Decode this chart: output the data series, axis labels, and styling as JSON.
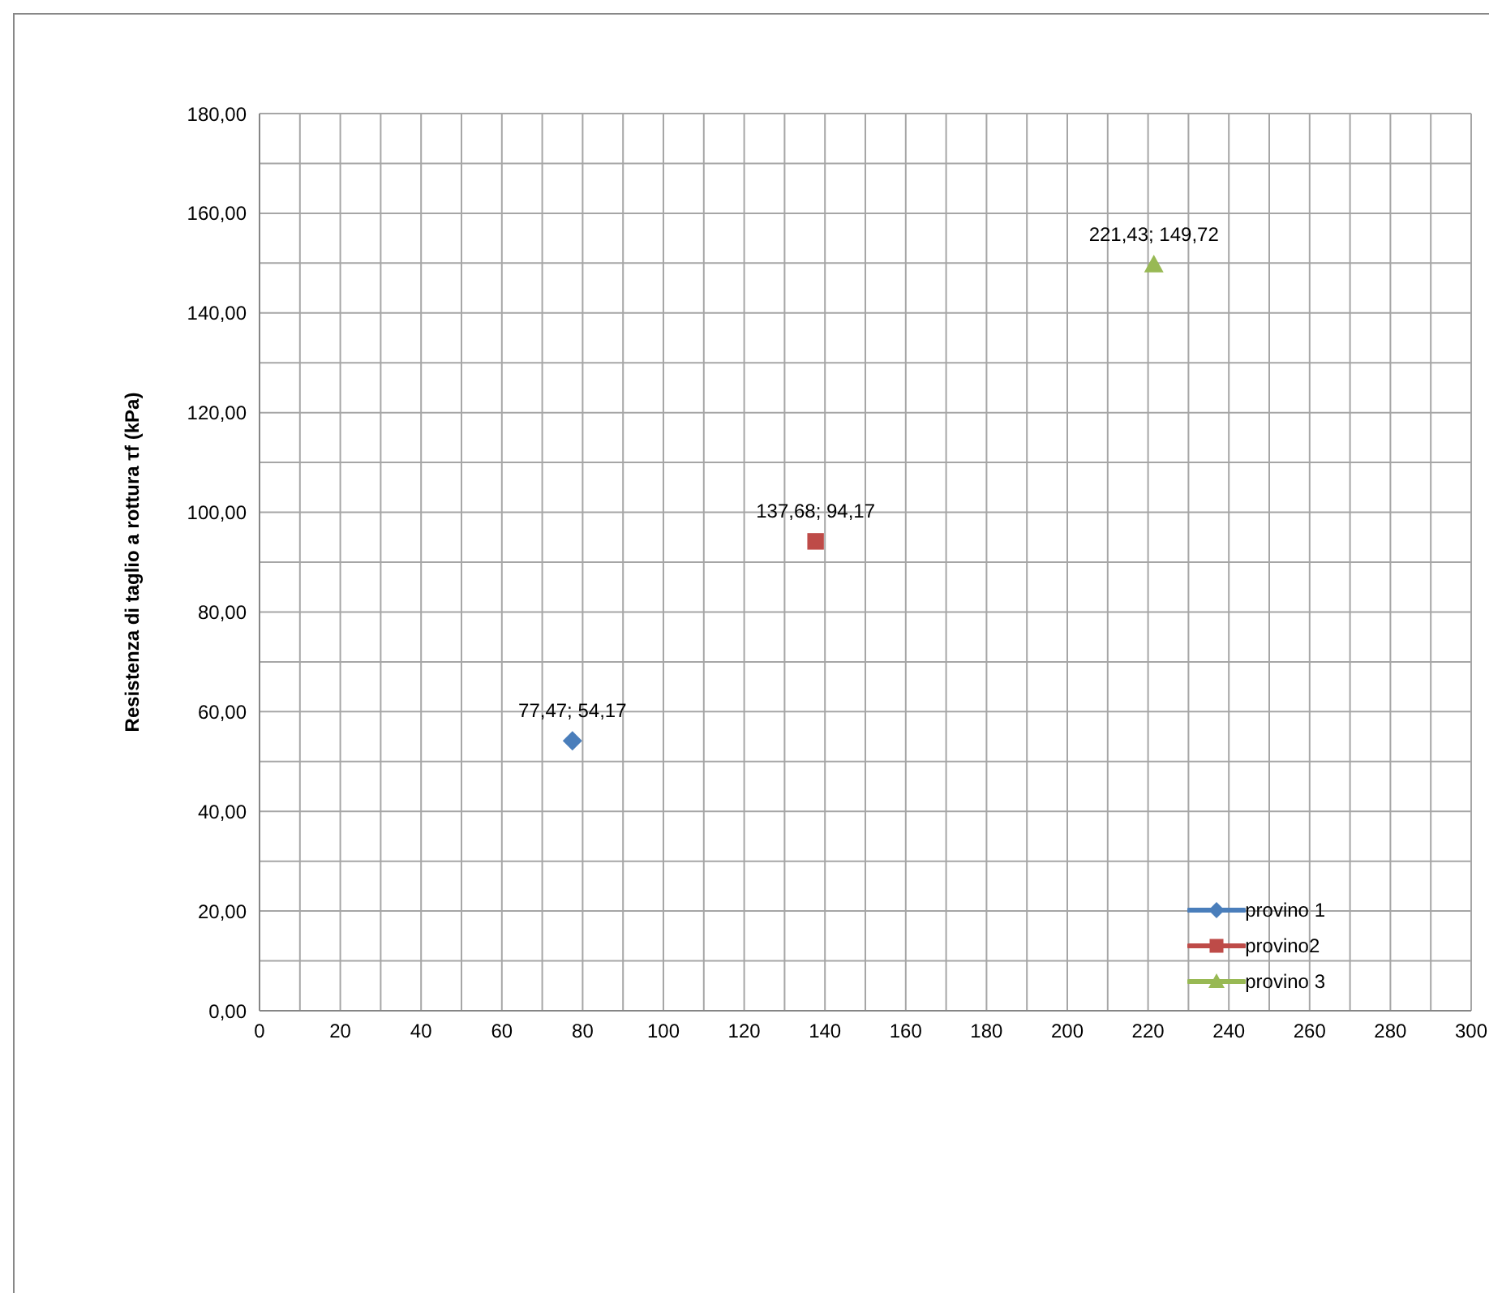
{
  "chart_data": {
    "type": "scatter",
    "ylabel": "Resistenza di taglio a rottura τf (kPa)",
    "xlim": [
      0,
      300
    ],
    "xticks": [
      0,
      {
        "value": 10,
        "label": null
      },
      20,
      {
        "value": 30,
        "label": null
      },
      40,
      {
        "value": 50,
        "label": null
      },
      60,
      {
        "value": 70,
        "label": null
      },
      80,
      {
        "value": 90,
        "label": null
      },
      100,
      {
        "value": 110,
        "label": null
      },
      120,
      {
        "value": 130,
        "label": null
      },
      140,
      {
        "value": 150,
        "label": null
      },
      160,
      {
        "value": 170,
        "label": null
      },
      180,
      {
        "value": 190,
        "label": null
      },
      200,
      {
        "value": 210,
        "label": null
      },
      220,
      {
        "value": 230,
        "label": null
      },
      240,
      {
        "value": 250,
        "label": null
      },
      260,
      {
        "value": 270,
        "label": null
      },
      280,
      {
        "value": 290,
        "label": null
      },
      300
    ],
    "ylim": [
      0,
      180
    ],
    "yticks": [
      {
        "value": 0,
        "label": "0,00"
      },
      {
        "value": 10,
        "label": null
      },
      {
        "value": 20,
        "label": "20,00"
      },
      {
        "value": 30,
        "label": null
      },
      {
        "value": 40,
        "label": "40,00"
      },
      {
        "value": 50,
        "label": null
      },
      {
        "value": 60,
        "label": "60,00"
      },
      {
        "value": 70,
        "label": null
      },
      {
        "value": 80,
        "label": "80,00"
      },
      {
        "value": 90,
        "label": null
      },
      {
        "value": 100,
        "label": "100,00"
      },
      {
        "value": 110,
        "label": null
      },
      {
        "value": 120,
        "label": "120,00"
      },
      {
        "value": 130,
        "label": null
      },
      {
        "value": 140,
        "label": "140,00"
      },
      {
        "value": 150,
        "label": null
      },
      {
        "value": 160,
        "label": "160,00"
      },
      {
        "value": 170,
        "label": null
      },
      {
        "value": 180,
        "label": "180,00"
      }
    ],
    "grid": true,
    "legend": "bottom right",
    "series": [
      {
        "name": "provino 1",
        "color": "#4a7ebb",
        "marker": "diamond",
        "x": [
          77.47
        ],
        "values": [
          54.17
        ],
        "value_labels": [
          "77,47; 54,17"
        ]
      },
      {
        "name": "provino2",
        "color": "#be4b48",
        "marker": "square",
        "x": [
          137.68
        ],
        "values": [
          94.17
        ],
        "value_labels": [
          "137,68; 94,17"
        ]
      },
      {
        "name": "provino 3",
        "color": "#98b954",
        "marker": "triangle",
        "x": [
          221.43
        ],
        "values": [
          149.72
        ],
        "value_labels": [
          "221,43; 149,72"
        ]
      }
    ]
  }
}
